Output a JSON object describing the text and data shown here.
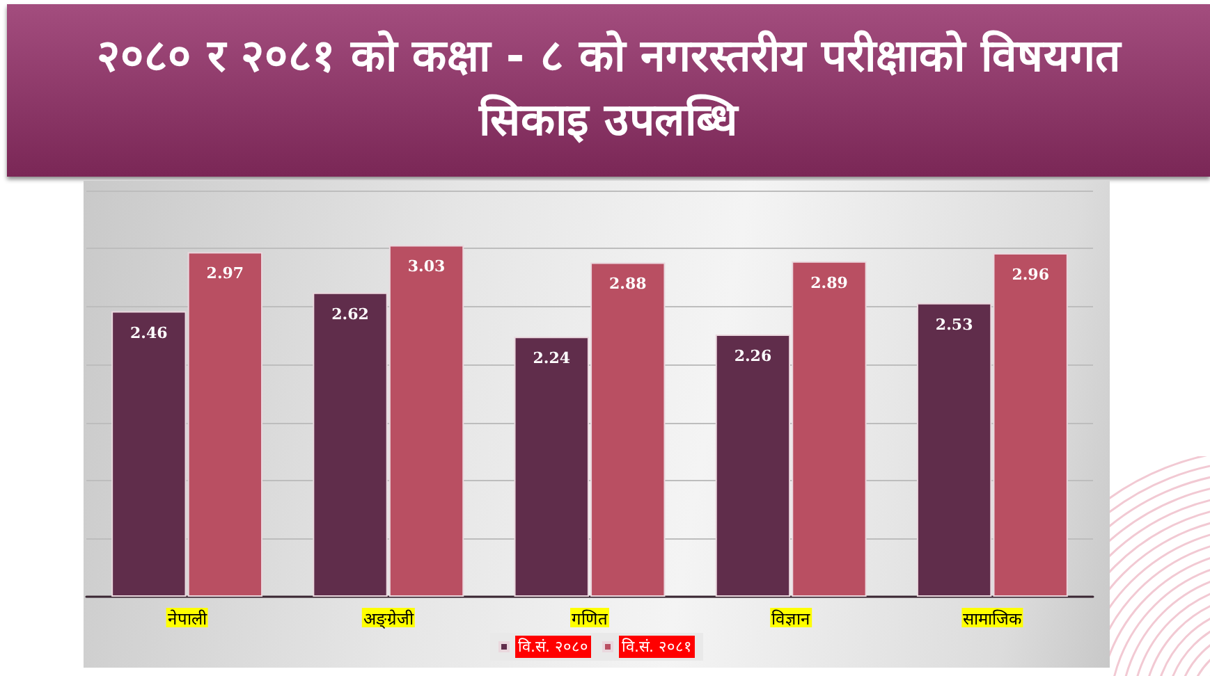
{
  "chart_data": {
    "type": "bar",
    "title": "२०८० र २०८१ को कक्षा - ८ को नगरस्तरीय परीक्षाको विषयगत सिकाइ उपलब्धि",
    "categories": [
      "नेपाली",
      "अङ्ग्रेजी",
      "गणित",
      "विज्ञान",
      "सामाजिक"
    ],
    "series": [
      {
        "name": "वि.सं. २०८०",
        "color": "#602d4b",
        "values": [
          2.46,
          2.62,
          2.24,
          2.26,
          2.53
        ]
      },
      {
        "name": "वि.सं. २०८१",
        "color": "#b94f62",
        "values": [
          2.97,
          3.03,
          2.88,
          2.89,
          2.96
        ]
      }
    ],
    "ylim": [
      0,
      3.5
    ],
    "yticks": [
      {
        "value": 0,
        "label": null
      },
      {
        "value": 0.5,
        "label": null
      },
      {
        "value": 1,
        "label": null
      },
      {
        "value": 1.5,
        "label": null
      },
      {
        "value": 2,
        "label": null
      },
      {
        "value": 2.5,
        "label": null
      },
      {
        "value": 3,
        "label": null
      },
      {
        "value": 3.5,
        "label": null
      }
    ],
    "grid": "y",
    "tick_labels": "x",
    "legend": "bottom",
    "data_labels": true
  }
}
